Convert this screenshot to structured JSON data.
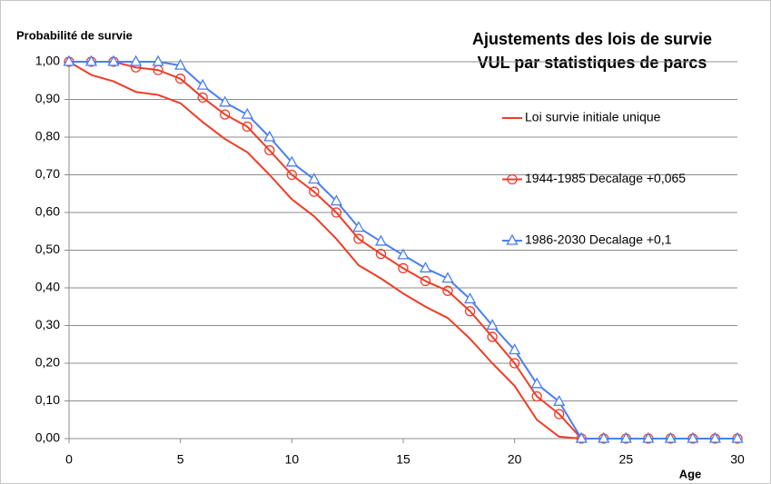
{
  "chart_data": {
    "type": "line",
    "title": [
      "Ajustements des lois de survie",
      "VUL par statistiques de parcs"
    ],
    "y_label": "Probabilité de survie",
    "x_label": "Age",
    "x": [
      0,
      1,
      2,
      3,
      4,
      5,
      6,
      7,
      8,
      9,
      10,
      11,
      12,
      13,
      14,
      15,
      16,
      17,
      18,
      19,
      20,
      21,
      22,
      23,
      24,
      25,
      26,
      27,
      28,
      29,
      30
    ],
    "series": [
      {
        "name": "Loi survie initiale unique",
        "color": "#f03c28",
        "marker": "none",
        "values": [
          1.0,
          0.965,
          0.948,
          0.92,
          0.912,
          0.89,
          0.84,
          0.795,
          0.76,
          0.7,
          0.635,
          0.59,
          0.53,
          0.46,
          0.425,
          0.385,
          0.35,
          0.32,
          0.265,
          0.2,
          0.14,
          0.05,
          0.005,
          0,
          0,
          0,
          0,
          0,
          0,
          0,
          0
        ]
      },
      {
        "name": "1944-1985 Decalage +0,065",
        "color": "#f03c28",
        "marker": "circle",
        "values": [
          1.0,
          1.0,
          1.0,
          0.985,
          0.978,
          0.955,
          0.905,
          0.86,
          0.828,
          0.765,
          0.7,
          0.655,
          0.6,
          0.53,
          0.49,
          0.452,
          0.418,
          0.392,
          0.338,
          0.27,
          0.2,
          0.112,
          0.065,
          0,
          0,
          0,
          0,
          0,
          0,
          0,
          0
        ]
      },
      {
        "name": "1986-2030 Decalage +0,1",
        "color": "#4a7ff0",
        "marker": "triangle",
        "values": [
          1.0,
          1.0,
          1.0,
          1.0,
          1.0,
          0.99,
          0.937,
          0.892,
          0.86,
          0.8,
          0.733,
          0.688,
          0.63,
          0.56,
          0.523,
          0.487,
          0.452,
          0.425,
          0.37,
          0.3,
          0.235,
          0.145,
          0.098,
          0,
          0,
          0,
          0,
          0,
          0,
          0,
          0
        ]
      }
    ],
    "xlim": [
      0,
      30
    ],
    "xticks": [
      0,
      5,
      10,
      15,
      20,
      25,
      30
    ],
    "ylim": [
      0,
      1
    ],
    "yticks": [
      {
        "value": 0,
        "label": "0,00"
      },
      {
        "value": 0.1,
        "label": "0,10"
      },
      {
        "value": 0.2,
        "label": "0,20"
      },
      {
        "value": 0.3,
        "label": "0,30"
      },
      {
        "value": 0.4,
        "label": "0,40"
      },
      {
        "value": 0.5,
        "label": "0,50"
      },
      {
        "value": 0.6,
        "label": "0,60"
      },
      {
        "value": 0.7,
        "label": "0,70"
      },
      {
        "value": 0.8,
        "label": "0,80"
      },
      {
        "value": 0.9,
        "label": "0,90"
      },
      {
        "value": 1,
        "label": "1,00"
      }
    ],
    "grid": true,
    "legend": "right"
  }
}
